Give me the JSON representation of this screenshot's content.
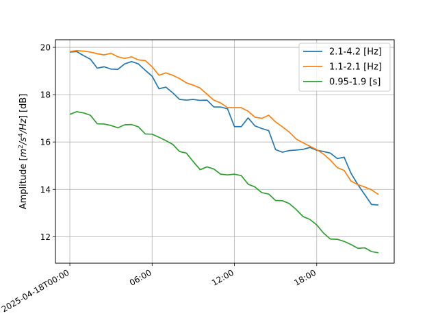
{
  "chart_data": {
    "type": "line",
    "title": "",
    "xlabel": "",
    "ylabel": "Amplitude [m²/s⁴/Hz] [dB]",
    "ylabel_parts": {
      "prefix": "Amplitude [",
      "math": "m",
      "sup1": "2",
      "mid": "/s",
      "sup2": "4",
      "tail": "/Hz",
      "suffix": "] [dB]"
    },
    "x_tick_labels": [
      "2025-04-18T00:00",
      "06:00",
      "12:00",
      "18:00"
    ],
    "x_tick_hours": [
      0,
      6,
      12,
      18
    ],
    "y_ticks": [
      12,
      14,
      16,
      18,
      20
    ],
    "xlim": [
      -1.05,
      23.65
    ],
    "ylim": [
      10.88,
      20.32
    ],
    "grid": true,
    "legend_position": "upper-right",
    "x_unit": "hours since 2025-04-18T00:00",
    "x": [
      0,
      0.5,
      1,
      1.5,
      2,
      2.5,
      3,
      3.5,
      4,
      4.5,
      5,
      5.5,
      6,
      6.5,
      7,
      7.5,
      8,
      8.5,
      9,
      9.5,
      10,
      10.5,
      11,
      11.5,
      12,
      12.5,
      13,
      13.5,
      14,
      14.5,
      15,
      15.5,
      16,
      16.5,
      17,
      17.5,
      18,
      18.5,
      19,
      19.5,
      20,
      20.5,
      21,
      21.5,
      22,
      22.5
    ],
    "series": [
      {
        "name": "2.1-4.2 [Hz]",
        "color": "#1f77b4",
        "values": [
          19.8,
          19.82,
          19.65,
          19.5,
          19.12,
          19.18,
          19.08,
          19.07,
          19.3,
          19.4,
          19.3,
          19.03,
          18.78,
          18.25,
          18.32,
          18.08,
          17.8,
          17.77,
          17.8,
          17.76,
          17.77,
          17.48,
          17.48,
          17.4,
          16.65,
          16.65,
          17.02,
          16.68,
          16.57,
          16.48,
          15.68,
          15.57,
          15.64,
          15.66,
          15.69,
          15.77,
          15.65,
          15.6,
          15.53,
          15.3,
          15.36,
          14.68,
          14.2,
          13.78,
          13.36,
          13.34
        ]
      },
      {
        "name": "1.1-2.1 [Hz]",
        "color": "#ff7f0e",
        "values": [
          19.82,
          19.86,
          19.84,
          19.8,
          19.73,
          19.68,
          19.75,
          19.6,
          19.53,
          19.6,
          19.47,
          19.44,
          19.18,
          18.82,
          18.92,
          18.82,
          18.68,
          18.5,
          18.4,
          18.28,
          18.02,
          17.77,
          17.65,
          17.45,
          17.45,
          17.45,
          17.3,
          17.05,
          17.0,
          17.13,
          16.85,
          16.64,
          16.42,
          16.13,
          15.97,
          15.82,
          15.68,
          15.49,
          15.23,
          14.92,
          14.8,
          14.35,
          14.2,
          14.1,
          13.98,
          13.78
        ]
      },
      {
        "name": "0.95-1.9 [s]",
        "color": "#2ca02c",
        "values": [
          17.17,
          17.28,
          17.23,
          17.13,
          16.77,
          16.76,
          16.7,
          16.6,
          16.73,
          16.74,
          16.64,
          16.34,
          16.33,
          16.2,
          16.06,
          15.9,
          15.6,
          15.53,
          15.17,
          14.83,
          14.95,
          14.86,
          14.64,
          14.61,
          14.64,
          14.58,
          14.22,
          14.1,
          13.86,
          13.8,
          13.53,
          13.52,
          13.4,
          13.15,
          12.85,
          12.73,
          12.5,
          12.15,
          11.9,
          11.89,
          11.8,
          11.67,
          11.51,
          11.53,
          11.37,
          11.32
        ]
      }
    ]
  }
}
